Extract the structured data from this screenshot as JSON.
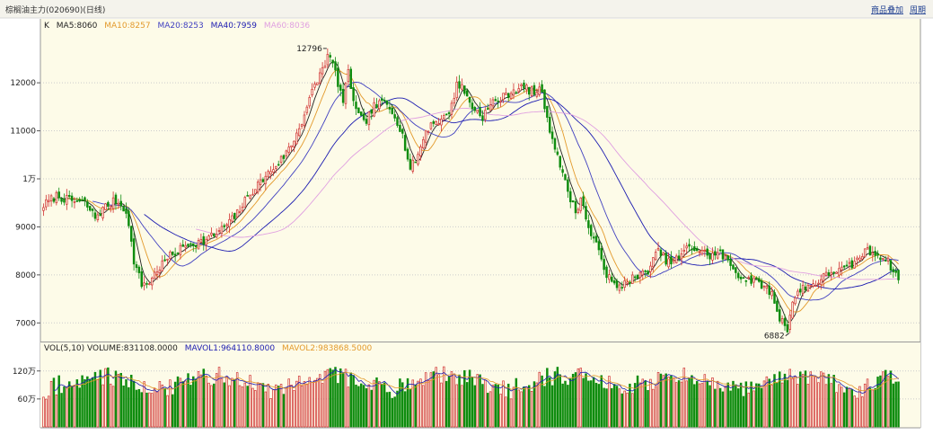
{
  "header": {
    "title": "棕榈油主力(020690)(日线)",
    "links": [
      "商品叠加",
      "周期"
    ]
  },
  "price_panel": {
    "type_label": "K",
    "indicators": [
      {
        "label": "MA5:8060",
        "color": "#222222"
      },
      {
        "label": "MA10:8257",
        "color": "#e39a2c"
      },
      {
        "label": "MA20:8253",
        "color": "#4040c0"
      },
      {
        "label": "MA40:7959",
        "color": "#1c1cb0"
      },
      {
        "label": "MA60:8036",
        "color": "#e0a0e0"
      }
    ],
    "max_label": "12796",
    "min_label": "6882"
  },
  "volume_panel": {
    "indicators": [
      {
        "label": "VOL(5,10) VOLUME:831108.0000",
        "color": "#222222"
      },
      {
        "label": "MAVOL1:964110.8000",
        "color": "#1c1cb0"
      },
      {
        "label": "MAVOL2:983868.5000",
        "color": "#e39a2c"
      }
    ]
  },
  "colors": {
    "up": "#d03030",
    "down": "#0f8c0f",
    "background": "#fdfbe8",
    "grid": "#cccccc"
  },
  "chart_data": {
    "type": "candlestick",
    "title": "棕榈油主力(020690)(日线)",
    "y_ticks": [
      7000,
      8000,
      9000,
      10000,
      11000,
      12000
    ],
    "y_tick_labels": [
      "7000",
      "8000",
      "9000",
      "1万",
      "11000",
      "12000"
    ],
    "ylim": [
      6650,
      13200
    ],
    "volume_ticks": [
      600000,
      1200000
    ],
    "volume_tick_labels": [
      "60万",
      "120万"
    ],
    "volume_ylim": [
      0,
      1600000
    ],
    "close_path": [
      [
        0,
        9450
      ],
      [
        5,
        9650
      ],
      [
        10,
        9550
      ],
      [
        16,
        9500
      ],
      [
        20,
        9200
      ],
      [
        24,
        9420
      ],
      [
        28,
        9550
      ],
      [
        32,
        9350
      ],
      [
        35,
        8300
      ],
      [
        38,
        7800
      ],
      [
        41,
        7850
      ],
      [
        44,
        8100
      ],
      [
        48,
        8350
      ],
      [
        52,
        8500
      ],
      [
        56,
        8650
      ],
      [
        62,
        8700
      ],
      [
        68,
        8900
      ],
      [
        74,
        9200
      ],
      [
        80,
        9700
      ],
      [
        86,
        10050
      ],
      [
        92,
        10400
      ],
      [
        96,
        10700
      ],
      [
        100,
        11200
      ],
      [
        104,
        11800
      ],
      [
        108,
        12300
      ],
      [
        110,
        12550
      ],
      [
        112,
        12400
      ],
      [
        116,
        11600
      ],
      [
        118,
        12200
      ],
      [
        121,
        11400
      ],
      [
        124,
        11150
      ],
      [
        128,
        11500
      ],
      [
        132,
        11600
      ],
      [
        136,
        11350
      ],
      [
        139,
        10900
      ],
      [
        142,
        10200
      ],
      [
        145,
        10500
      ],
      [
        148,
        11000
      ],
      [
        151,
        11200
      ],
      [
        154,
        11200
      ],
      [
        158,
        11500
      ],
      [
        160,
        12000
      ],
      [
        162,
        11900
      ],
      [
        166,
        11500
      ],
      [
        170,
        11300
      ],
      [
        174,
        11600
      ],
      [
        178,
        11700
      ],
      [
        182,
        11850
      ],
      [
        186,
        11900
      ],
      [
        190,
        11800
      ],
      [
        193,
        11850
      ],
      [
        195,
        11200
      ],
      [
        198,
        10700
      ],
      [
        202,
        9900
      ],
      [
        206,
        9300
      ],
      [
        208,
        9600
      ],
      [
        212,
        8800
      ],
      [
        216,
        8400
      ],
      [
        218,
        8000
      ],
      [
        222,
        7700
      ],
      [
        226,
        7900
      ],
      [
        230,
        7950
      ],
      [
        234,
        8100
      ],
      [
        238,
        8500
      ],
      [
        242,
        8250
      ],
      [
        246,
        8350
      ],
      [
        250,
        8600
      ],
      [
        254,
        8500
      ],
      [
        258,
        8400
      ],
      [
        262,
        8450
      ],
      [
        266,
        8200
      ],
      [
        270,
        7950
      ],
      [
        274,
        7900
      ],
      [
        278,
        7800
      ],
      [
        282,
        7600
      ],
      [
        285,
        7100
      ],
      [
        288,
        6900
      ],
      [
        290,
        7450
      ],
      [
        294,
        7750
      ],
      [
        298,
        7800
      ],
      [
        302,
        7950
      ],
      [
        306,
        8100
      ],
      [
        310,
        8100
      ],
      [
        314,
        8250
      ],
      [
        318,
        8500
      ],
      [
        322,
        8450
      ],
      [
        326,
        8350
      ],
      [
        329,
        8100
      ],
      [
        331,
        7900
      ]
    ],
    "seed": 7
  }
}
